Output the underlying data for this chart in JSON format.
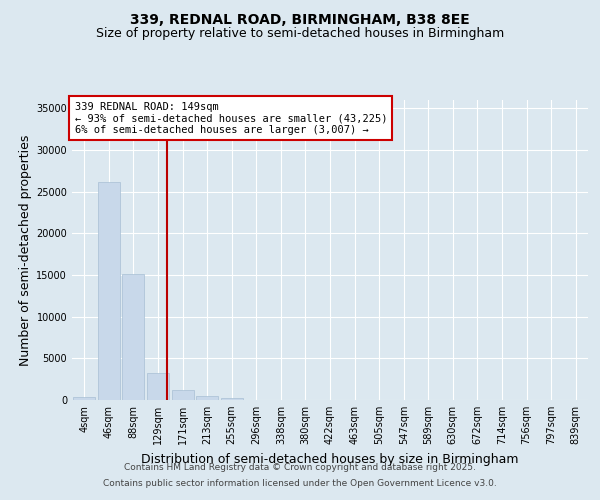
{
  "title_line1": "339, REDNAL ROAD, BIRMINGHAM, B38 8EE",
  "title_line2": "Size of property relative to semi-detached houses in Birmingham",
  "xlabel": "Distribution of semi-detached houses by size in Birmingham",
  "ylabel": "Number of semi-detached properties",
  "categories": [
    "4sqm",
    "46sqm",
    "88sqm",
    "129sqm",
    "171sqm",
    "213sqm",
    "255sqm",
    "296sqm",
    "338sqm",
    "380sqm",
    "422sqm",
    "463sqm",
    "505sqm",
    "547sqm",
    "589sqm",
    "630sqm",
    "672sqm",
    "714sqm",
    "756sqm",
    "797sqm",
    "839sqm"
  ],
  "values": [
    350,
    26200,
    15100,
    3200,
    1200,
    450,
    200,
    50,
    0,
    0,
    0,
    0,
    0,
    0,
    0,
    0,
    0,
    0,
    0,
    0,
    0
  ],
  "bar_color": "#c8d8ea",
  "bar_edge_color": "#a8bfd4",
  "vline_x_index": 3.35,
  "vline_color": "#bb0000",
  "annotation_text": "339 REDNAL ROAD: 149sqm\n← 93% of semi-detached houses are smaller (43,225)\n6% of semi-detached houses are larger (3,007) →",
  "annotation_box_color": "#cc0000",
  "ylim": [
    0,
    36000
  ],
  "yticks": [
    0,
    5000,
    10000,
    15000,
    20000,
    25000,
    30000,
    35000
  ],
  "bg_color": "#dce8f0",
  "plot_bg_color": "#dce8f0",
  "grid_color": "#ffffff",
  "footer_line1": "Contains HM Land Registry data © Crown copyright and database right 2025.",
  "footer_line2": "Contains public sector information licensed under the Open Government Licence v3.0.",
  "title_fontsize": 10,
  "subtitle_fontsize": 9,
  "axis_label_fontsize": 9,
  "tick_fontsize": 7,
  "annotation_fontsize": 7.5,
  "footer_fontsize": 6.5
}
